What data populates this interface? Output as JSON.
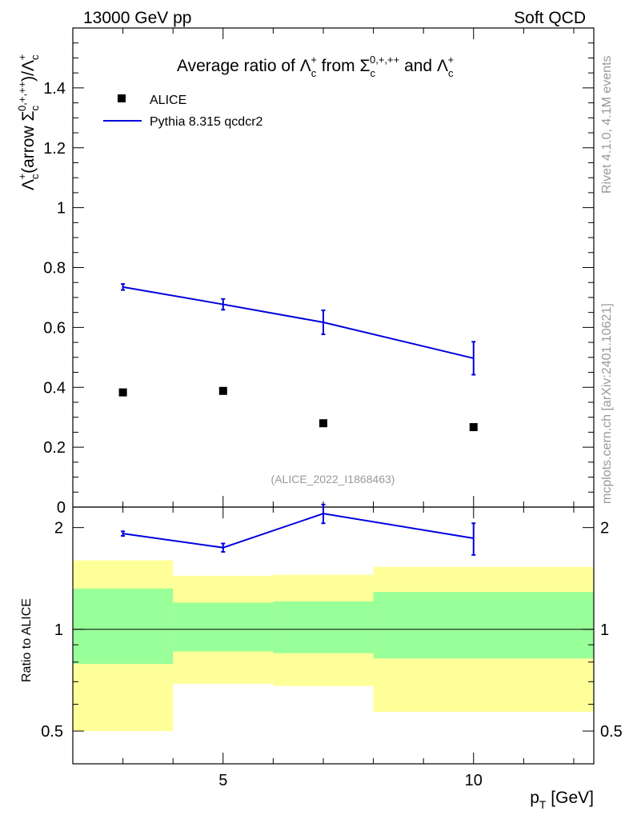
{
  "header": {
    "left": "13000 GeV pp",
    "right": "Soft QCD"
  },
  "side_labels": {
    "rivet": "Rivet 4.1.0,  4.1M events",
    "mcplots": "mcplots.cern.ch [arXiv:2401.10621]"
  },
  "colors": {
    "mc": "#0000dd",
    "data": "#000000",
    "band_outer": "#ffff99",
    "band_inner": "#99ff99"
  },
  "chart_data": [
    {
      "type": "scatter",
      "title": {
        "prefix": "Average ratio of ",
        "sym1": "Λ",
        "sym1_sub": "c",
        "sym1_sup": "+",
        "mid": " from ",
        "sym2": "Σ",
        "sym2_sub": "c",
        "sym2_sup": "0,+,++",
        "and": " and ",
        "sym3": "Λ",
        "sym3_sub": "c",
        "sym3_sup": "+"
      },
      "ylabel": {
        "a": "Λ",
        "a_sub": "c",
        "a_sup": "+",
        "b": "(arrow ",
        "c": "Σ",
        "c_sub": "c",
        "c_sup": "0,+,++",
        "d": ")/",
        "e": "Λ",
        "e_sub": "c",
        "e_sup": "+"
      },
      "ylim": [
        0,
        1.6
      ],
      "ytick_labels": [
        "0",
        "0.2",
        "0.4",
        "0.6",
        "0.8",
        "1",
        "1.2",
        "1.4"
      ],
      "ytick_values": [
        0,
        0.2,
        0.4,
        0.6,
        0.8,
        1.0,
        1.2,
        1.4
      ],
      "xlim": [
        2,
        12.4
      ],
      "watermark": "(ALICE_2022_I1868463)",
      "legend": {
        "position": "top-left",
        "data_label": "ALICE",
        "mc_label": "Pythia 8.315 qcdcr2"
      },
      "series": [
        {
          "name": "ALICE",
          "style": "markers",
          "x": [
            3,
            5,
            7,
            10
          ],
          "y": [
            0.383,
            0.388,
            0.28,
            0.267
          ]
        },
        {
          "name": "Pythia 8.315 qcdcr2",
          "style": "line",
          "x": [
            3,
            5,
            7,
            10
          ],
          "y": [
            0.735,
            0.677,
            0.617,
            0.497
          ],
          "err": [
            0.01,
            0.018,
            0.04,
            0.055
          ]
        }
      ]
    },
    {
      "type": "line",
      "ylabel": "Ratio to ALICE",
      "ylim": [
        0.4,
        2.3
      ],
      "ytick_labels": [
        "0.5",
        "1",
        "2"
      ],
      "ytick_values": [
        0.5,
        1,
        2
      ],
      "xlabel": {
        "main": "p",
        "sub": "T",
        "unit": " [GeV]"
      },
      "xlim": [
        2,
        12.4
      ],
      "xtick_labels": [
        "5",
        "10"
      ],
      "xtick_values": [
        5,
        10
      ],
      "bands": [
        {
          "x0": 2,
          "x1": 4,
          "outer": [
            0.5,
            1.6
          ],
          "inner": [
            0.79,
            1.32
          ]
        },
        {
          "x0": 4,
          "x1": 6,
          "outer": [
            0.69,
            1.44
          ],
          "inner": [
            0.86,
            1.2
          ]
        },
        {
          "x0": 6,
          "x1": 8,
          "outer": [
            0.68,
            1.45
          ],
          "inner": [
            0.85,
            1.21
          ]
        },
        {
          "x0": 8,
          "x1": 12.4,
          "outer": [
            0.57,
            1.53
          ],
          "inner": [
            0.82,
            1.29
          ]
        }
      ],
      "series": [
        {
          "name": "Pythia 8.315 qcdcr2 / ALICE",
          "x": [
            3,
            5,
            7,
            10
          ],
          "y": [
            1.92,
            1.745,
            2.2,
            1.86
          ],
          "err": [
            0.03,
            0.05,
            0.14,
            0.2
          ]
        }
      ]
    }
  ]
}
